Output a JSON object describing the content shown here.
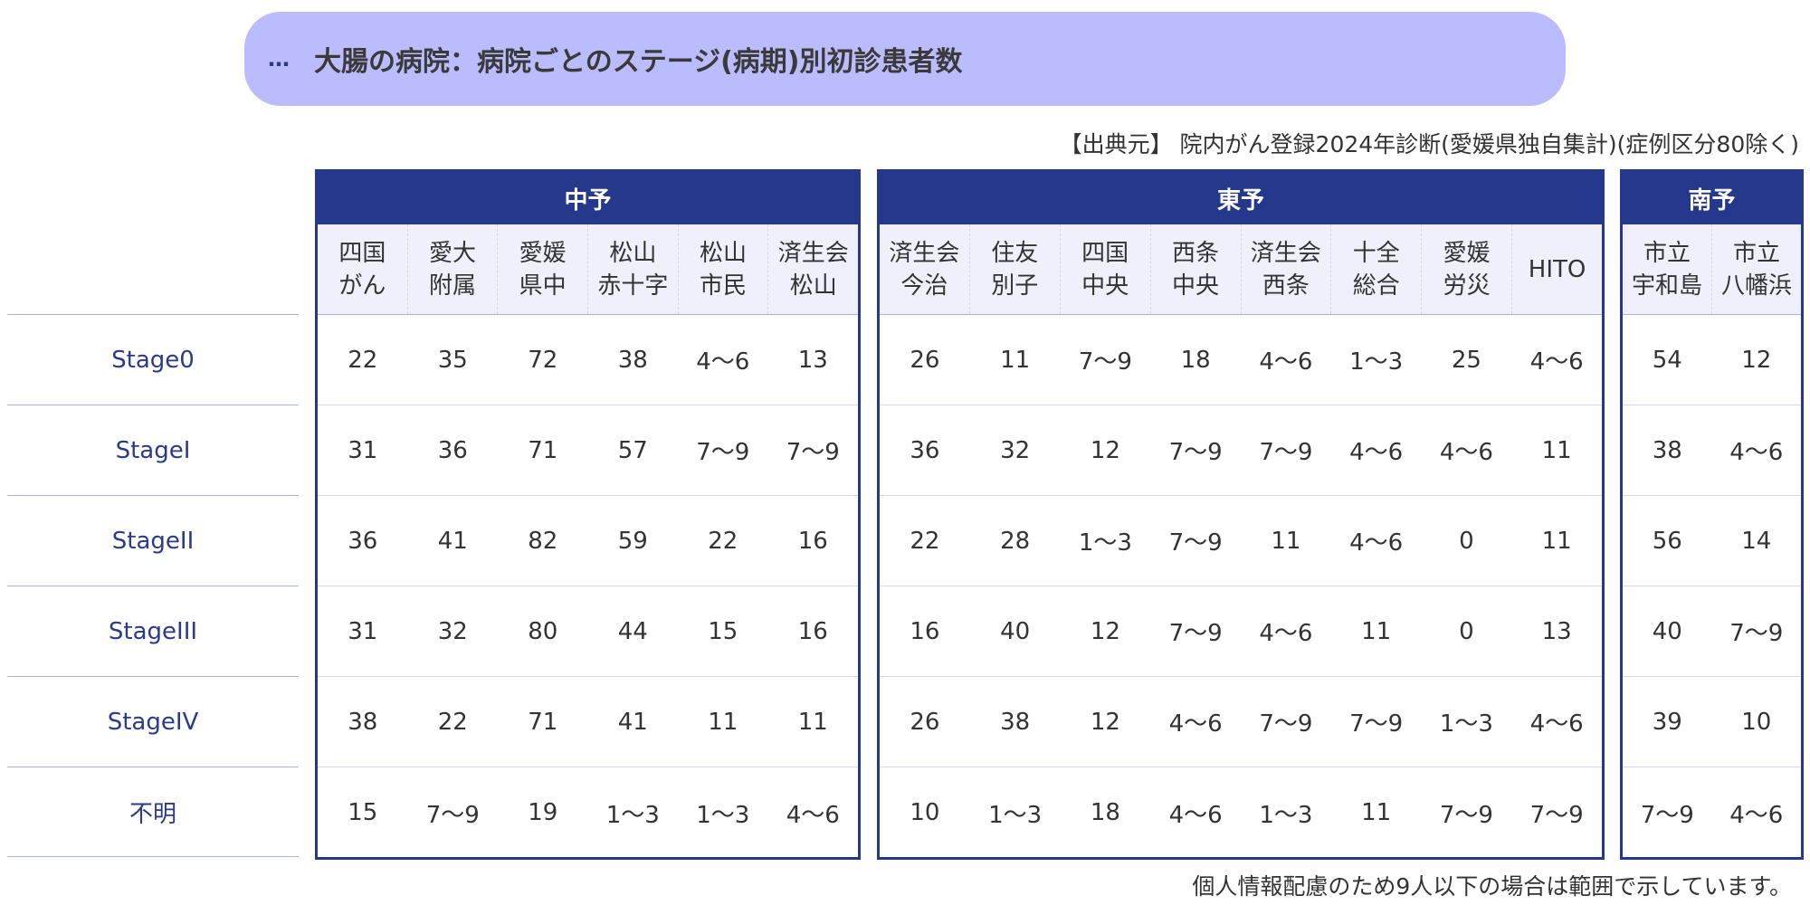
{
  "header": {
    "dots": "…",
    "title": "大腸の病院：病院ごとのステージ(病期)別初診患者数"
  },
  "source": "【出典元】 院内がん登録2024年診断(愛媛県独自集計)(症例区分80除く)",
  "note": "個人情報配慮のため9人以下の場合は範囲で示しています。",
  "stages": [
    "Stage0",
    "StageI",
    "StageII",
    "StageIII",
    "StageIV",
    "不明"
  ],
  "regions": [
    {
      "name": "中予",
      "hospitals": [
        "四国\nがん",
        "愛大\n附属",
        "愛媛\n県中",
        "松山\n赤十字",
        "松山\n市民",
        "済生会\n松山"
      ],
      "rows": [
        [
          "22",
          "35",
          "72",
          "38",
          "4〜6",
          "13"
        ],
        [
          "31",
          "36",
          "71",
          "57",
          "7〜9",
          "7〜9"
        ],
        [
          "36",
          "41",
          "82",
          "59",
          "22",
          "16"
        ],
        [
          "31",
          "32",
          "80",
          "44",
          "15",
          "16"
        ],
        [
          "38",
          "22",
          "71",
          "41",
          "11",
          "11"
        ],
        [
          "15",
          "7〜9",
          "19",
          "1〜3",
          "1〜3",
          "4〜6"
        ]
      ]
    },
    {
      "name": "東予",
      "hospitals": [
        "済生会\n今治",
        "住友\n別子",
        "四国\n中央",
        "西条\n中央",
        "済生会\n西条",
        "十全\n総合",
        "愛媛\n労災",
        "HITO"
      ],
      "rows": [
        [
          "26",
          "11",
          "7〜9",
          "18",
          "4〜6",
          "1〜3",
          "25",
          "4〜6"
        ],
        [
          "36",
          "32",
          "12",
          "7〜9",
          "7〜9",
          "4〜6",
          "4〜6",
          "11"
        ],
        [
          "22",
          "28",
          "1〜3",
          "7〜9",
          "11",
          "4〜6",
          "0",
          "11"
        ],
        [
          "16",
          "40",
          "12",
          "7〜9",
          "4〜6",
          "11",
          "0",
          "13"
        ],
        [
          "26",
          "38",
          "12",
          "4〜6",
          "7〜9",
          "7〜9",
          "1〜3",
          "4〜6"
        ],
        [
          "10",
          "1〜3",
          "18",
          "4〜6",
          "1〜3",
          "11",
          "7〜9",
          "7〜9"
        ]
      ]
    },
    {
      "name": "南予",
      "hospitals": [
        "市立\n宇和島",
        "市立\n八幡浜"
      ],
      "rows": [
        [
          "54",
          "12"
        ],
        [
          "38",
          "4〜6"
        ],
        [
          "56",
          "14"
        ],
        [
          "40",
          "7〜9"
        ],
        [
          "39",
          "10"
        ],
        [
          "7〜9",
          "4〜6"
        ]
      ]
    }
  ]
}
